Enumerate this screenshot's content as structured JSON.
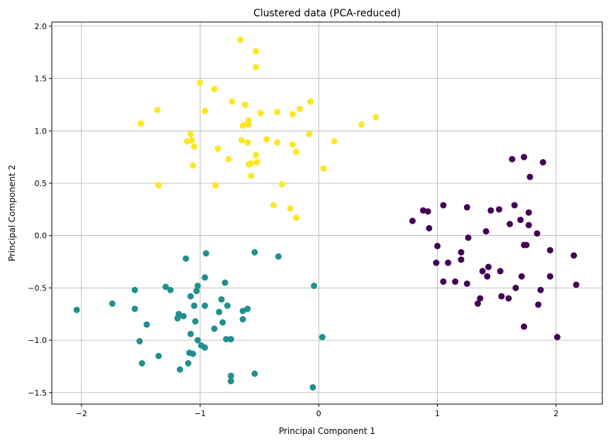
{
  "chart_data": {
    "type": "scatter",
    "title": "Clustered data (PCA-reduced)",
    "xlabel": "Principal Component 1",
    "ylabel": "Principal Component 2",
    "xlim": [
      -2.25,
      2.39
    ],
    "ylim": [
      -1.61,
      2.04
    ],
    "xticks": [
      -2,
      -1,
      0,
      1,
      2
    ],
    "xtick_labels": [
      "−2",
      "−1",
      "0",
      "1",
      "2"
    ],
    "yticks": [
      -1.5,
      -1.0,
      -0.5,
      0.0,
      0.5,
      1.0,
      1.5,
      2.0
    ],
    "ytick_labels": [
      "−1.5",
      "−1.0",
      "−0.5",
      "0.0",
      "0.5",
      "1.0",
      "1.5",
      "2.0"
    ],
    "grid": true,
    "legend": "none",
    "series": [
      {
        "color": "#fde725",
        "points": [
          [
            -0.66,
            1.87
          ],
          [
            -0.53,
            1.76
          ],
          [
            -0.53,
            1.61
          ],
          [
            -1.0,
            1.46
          ],
          [
            -0.88,
            1.4
          ],
          [
            -1.36,
            1.2
          ],
          [
            -0.62,
            1.25
          ],
          [
            -0.96,
            1.19
          ],
          [
            -0.73,
            1.28
          ],
          [
            -0.59,
            1.1
          ],
          [
            -0.6,
            1.07
          ],
          [
            -0.49,
            1.17
          ],
          [
            -0.35,
            1.18
          ],
          [
            -0.16,
            1.21
          ],
          [
            -0.22,
            1.16
          ],
          [
            -0.07,
            1.28
          ],
          [
            -1.5,
            1.07
          ],
          [
            -1.08,
            0.97
          ],
          [
            -0.64,
            1.05
          ],
          [
            -0.65,
            0.91
          ],
          [
            -0.6,
            0.89
          ],
          [
            -0.59,
            1.06
          ],
          [
            -0.44,
            0.92
          ],
          [
            -0.35,
            0.89
          ],
          [
            -0.22,
            0.87
          ],
          [
            -0.08,
            0.97
          ],
          [
            0.13,
            0.9
          ],
          [
            0.36,
            1.06
          ],
          [
            0.48,
            1.13
          ],
          [
            -1.11,
            0.9
          ],
          [
            -1.07,
            0.91
          ],
          [
            -1.05,
            0.85
          ],
          [
            -0.85,
            0.83
          ],
          [
            -0.76,
            0.73
          ],
          [
            -0.53,
            0.77
          ],
          [
            -0.52,
            0.7
          ],
          [
            -0.57,
            0.69
          ],
          [
            -0.59,
            0.68
          ],
          [
            -0.19,
            0.8
          ],
          [
            -1.06,
            0.67
          ],
          [
            0.04,
            0.64
          ],
          [
            -0.57,
            0.57
          ],
          [
            -1.35,
            0.48
          ],
          [
            -0.87,
            0.48
          ],
          [
            -0.31,
            0.49
          ],
          [
            -0.38,
            0.29
          ],
          [
            -0.24,
            0.26
          ],
          [
            -0.19,
            0.17
          ]
        ]
      },
      {
        "color": "#21908d",
        "points": [
          [
            -2.04,
            -0.71
          ],
          [
            -1.74,
            -0.65
          ],
          [
            -1.55,
            -0.52
          ],
          [
            -1.55,
            -0.7
          ],
          [
            -1.45,
            -0.85
          ],
          [
            -1.51,
            -1.01
          ],
          [
            -1.49,
            -1.22
          ],
          [
            -1.35,
            -1.15
          ],
          [
            -1.29,
            -0.49
          ],
          [
            -1.25,
            -0.52
          ],
          [
            -1.12,
            -0.22
          ],
          [
            -1.19,
            -0.79
          ],
          [
            -1.18,
            -0.75
          ],
          [
            -1.14,
            -0.77
          ],
          [
            -1.08,
            -0.58
          ],
          [
            -1.03,
            -0.53
          ],
          [
            -1.02,
            -0.48
          ],
          [
            -0.95,
            -0.17
          ],
          [
            -0.96,
            -0.4
          ],
          [
            -1.05,
            -0.67
          ],
          [
            -0.96,
            -0.67
          ],
          [
            -1.04,
            -0.82
          ],
          [
            -1.08,
            -0.94
          ],
          [
            -1.02,
            -1.0
          ],
          [
            -0.99,
            -1.05
          ],
          [
            -0.96,
            -1.07
          ],
          [
            -1.09,
            -1.12
          ],
          [
            -1.06,
            -1.13
          ],
          [
            -1.1,
            -1.22
          ],
          [
            -1.17,
            -1.28
          ],
          [
            -0.88,
            -0.89
          ],
          [
            -0.79,
            -0.45
          ],
          [
            -0.82,
            -0.61
          ],
          [
            -0.77,
            -0.67
          ],
          [
            -0.84,
            -0.73
          ],
          [
            -0.81,
            -0.83
          ],
          [
            -0.78,
            -0.99
          ],
          [
            -0.74,
            -0.99
          ],
          [
            -0.64,
            -0.72
          ],
          [
            -0.6,
            -0.7
          ],
          [
            -0.64,
            -0.8
          ],
          [
            -0.54,
            -0.16
          ],
          [
            -0.34,
            -0.2
          ],
          [
            -0.74,
            -1.34
          ],
          [
            -0.74,
            -1.39
          ],
          [
            -0.54,
            -1.32
          ],
          [
            -0.04,
            -0.48
          ],
          [
            0.03,
            -0.97
          ],
          [
            -0.05,
            -1.45
          ]
        ]
      },
      {
        "color": "#440154",
        "points": [
          [
            0.79,
            0.14
          ],
          [
            0.88,
            0.24
          ],
          [
            0.92,
            0.23
          ],
          [
            0.93,
            0.07
          ],
          [
            1.05,
            0.29
          ],
          [
            1.25,
            0.27
          ],
          [
            1.45,
            0.24
          ],
          [
            1.52,
            0.25
          ],
          [
            1.65,
            0.29
          ],
          [
            1.63,
            0.73
          ],
          [
            1.73,
            0.75
          ],
          [
            1.78,
            0.56
          ],
          [
            1.89,
            0.7
          ],
          [
            1.61,
            0.11
          ],
          [
            1.7,
            0.15
          ],
          [
            1.77,
            0.22
          ],
          [
            1.77,
            0.1
          ],
          [
            1.84,
            0.02
          ],
          [
            1.41,
            0.04
          ],
          [
            1.26,
            -0.02
          ],
          [
            1.0,
            -0.1
          ],
          [
            1.2,
            -0.16
          ],
          [
            1.2,
            -0.23
          ],
          [
            0.99,
            -0.26
          ],
          [
            1.09,
            -0.26
          ],
          [
            1.43,
            -0.3
          ],
          [
            1.38,
            -0.34
          ],
          [
            1.42,
            -0.39
          ],
          [
            1.53,
            -0.34
          ],
          [
            1.75,
            -0.09
          ],
          [
            1.73,
            -0.09
          ],
          [
            1.95,
            -0.14
          ],
          [
            2.15,
            -0.19
          ],
          [
            1.71,
            -0.39
          ],
          [
            1.95,
            -0.39
          ],
          [
            1.05,
            -0.44
          ],
          [
            1.15,
            -0.44
          ],
          [
            1.25,
            -0.46
          ],
          [
            1.66,
            -0.5
          ],
          [
            1.87,
            -0.52
          ],
          [
            2.17,
            -0.47
          ],
          [
            1.36,
            -0.6
          ],
          [
            1.34,
            -0.65
          ],
          [
            1.54,
            -0.58
          ],
          [
            1.6,
            -0.6
          ],
          [
            1.85,
            -0.66
          ],
          [
            1.73,
            -0.87
          ],
          [
            2.01,
            -0.97
          ]
        ]
      }
    ]
  }
}
